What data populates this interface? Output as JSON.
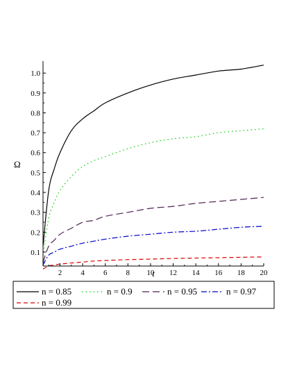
{
  "chart_data": {
    "type": "line",
    "xlabel": "t",
    "ylabel": "Ω",
    "xlim": [
      0.5,
      20
    ],
    "ylim": [
      0.03,
      1.06
    ],
    "x_ticks": [
      "2",
      "4",
      "6",
      "8",
      "10",
      "12",
      "14",
      "16",
      "18",
      "20"
    ],
    "y_ticks": [
      "0.1",
      "0.2",
      "0.3",
      "0.4",
      "0.5",
      "0.6",
      "0.7",
      "0.8",
      "0.9",
      "1.0"
    ],
    "grid": false,
    "legend_position": "bottom",
    "x": [
      0.5,
      1,
      1.5,
      2,
      3,
      4,
      5,
      6,
      8,
      10,
      12,
      14,
      16,
      18,
      20
    ],
    "series": [
      {
        "name": "n = 0.85",
        "color": "#000000",
        "dash": "solid",
        "values": [
          0.13,
          0.41,
          0.52,
          0.6,
          0.71,
          0.77,
          0.81,
          0.85,
          0.9,
          0.94,
          0.97,
          0.99,
          1.01,
          1.02,
          1.04
        ]
      },
      {
        "name": "n = 0.9",
        "color": "#00cc00",
        "dash": "dotted",
        "values": [
          0.08,
          0.27,
          0.35,
          0.41,
          0.48,
          0.53,
          0.56,
          0.58,
          0.62,
          0.65,
          0.67,
          0.68,
          0.7,
          0.71,
          0.72
        ]
      },
      {
        "name": "n = 0.95",
        "color": "#4d2050",
        "dash": "longdash",
        "values": [
          0.05,
          0.13,
          0.16,
          0.19,
          0.22,
          0.25,
          0.26,
          0.28,
          0.3,
          0.32,
          0.33,
          0.345,
          0.355,
          0.365,
          0.375
        ]
      },
      {
        "name": "n = 0.97",
        "color": "#0000cc",
        "dash": "dashdot",
        "values": [
          0.035,
          0.085,
          0.1,
          0.115,
          0.13,
          0.145,
          0.155,
          0.165,
          0.18,
          0.19,
          0.2,
          0.205,
          0.215,
          0.225,
          0.23
        ]
      },
      {
        "name": "n = 0.99",
        "color": "#dd0000",
        "dash": "dash",
        "values": [
          0.015,
          0.03,
          0.035,
          0.04,
          0.045,
          0.05,
          0.055,
          0.058,
          0.062,
          0.065,
          0.068,
          0.07,
          0.072,
          0.074,
          0.076
        ]
      }
    ]
  }
}
